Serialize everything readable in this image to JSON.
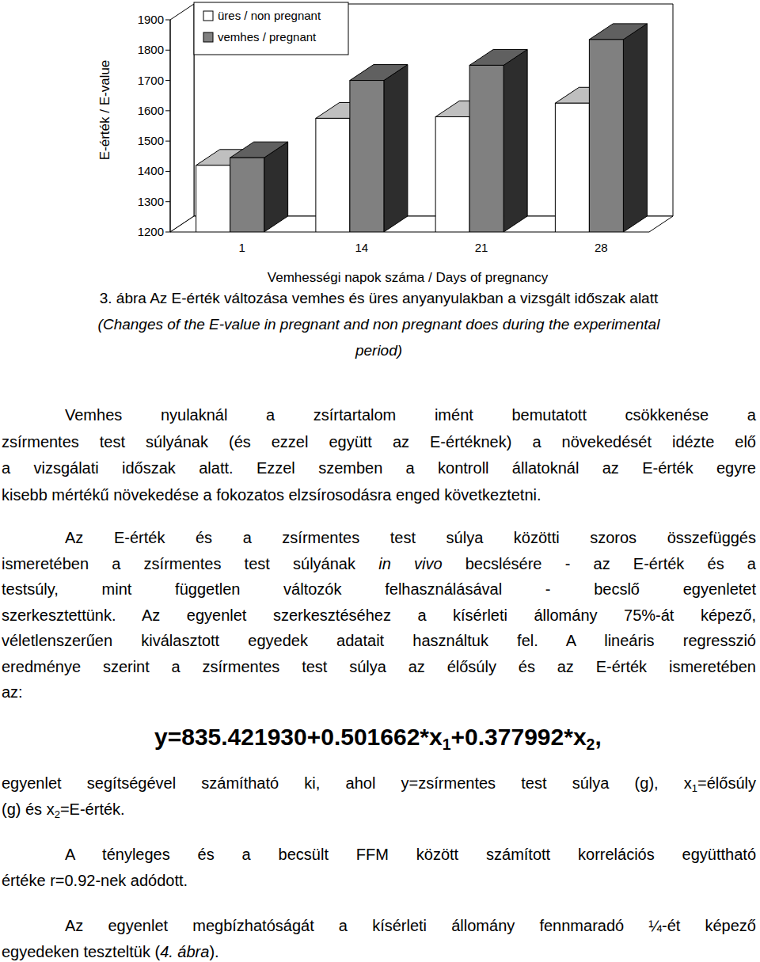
{
  "chart_data": {
    "type": "bar",
    "x_label": "Vemhességi napok száma / Days of pregnancy",
    "y_label": "E-érték / E-value",
    "categories": [
      "1",
      "14",
      "21",
      "28"
    ],
    "series": [
      {
        "name": "üres / non pregnant",
        "color": "#ffffff",
        "values": [
          1420,
          1575,
          1580,
          1625
        ]
      },
      {
        "name": "vemhes / pregnant",
        "color": "#808080",
        "values": [
          1445,
          1700,
          1750,
          1835
        ]
      }
    ],
    "ylim": [
      1200,
      1900
    ],
    "yticks": [
      1200,
      1300,
      1400,
      1500,
      1600,
      1700,
      1800,
      1900
    ],
    "legend": "top-left",
    "grid": false
  },
  "document": {
    "caption": [
      [
        "3. ábra Az E-érték változása vemhes és üres anyanyulakban a vizsgált időszak alatt"
      ],
      [
        {
          "text": "(Changes of the E-value in pregnant and non pregnant does during the experimental",
          "style": "italic"
        }
      ],
      [
        {
          "text": "period)",
          "style": "italic"
        }
      ]
    ],
    "paragraphs": [
      {
        "lines": [
          [
            "Vemhes nyulaknál a zsírtartalom imént bemutatott csökkenése a"
          ],
          [
            "zsírmentes test súlyának (és ezzel együtt az E-értéknek) a növekedését idézte elő"
          ],
          [
            "a vizsgálati időszak alatt. Ezzel szemben a kontroll állatoknál az E-érték egyre"
          ],
          [
            "kisebb mértékű növekedése a fokozatos elzsírosodásra enged következtetni."
          ]
        ]
      },
      {
        "lines": [
          [
            "Az E-érték és a zsírmentes test súlya közötti szoros összefüggés"
          ],
          [
            "ismeretében a zsírmentes test súlyának ",
            {
              "text": "in vivo",
              "style": "italic"
            },
            " becslésére - az E-érték és a"
          ],
          [
            "testsúly, mint független változók felhasználásával - becslő egyenletet"
          ],
          [
            "szerkesztettünk. Az egyenlet szerkesztéséhez a kísérleti állomány 75%-át képező,"
          ],
          [
            "véletlenszerűen kiválasztott egyedek adatait használtuk fel. A lineáris regresszió"
          ],
          [
            "eredménye szerint a zsírmentes test súlya az élősúly és az E-érték ismeretében"
          ],
          [
            "az:"
          ]
        ]
      },
      {
        "lines": [
          [
            "y=835.421930+0.501662*x",
            {
              "text": "1",
              "style": "sub"
            },
            "+0.377992*x",
            {
              "text": "2",
              "style": "sub"
            },
            ","
          ]
        ]
      },
      {
        "lines": [
          [
            "egyenlet segítségével számítható ki, ahol y=zsírmentes test súlya (g), x",
            {
              "text": "1",
              "style": "sub"
            },
            "=élősúly"
          ],
          [
            "(g) és x",
            {
              "text": "2",
              "style": "sub"
            },
            "=E-érték."
          ]
        ]
      },
      {
        "lines": [
          [
            "A tényleges és a becsült FFM között számított korrelációs együttható"
          ],
          [
            "értéke r=0.92-nek adódott."
          ]
        ]
      },
      {
        "lines": [
          [
            "Az egyenlet megbízhatóságát a kísérleti állomány fennmaradó ¼-ét képező"
          ],
          [
            "egyedeken teszteltük (",
            {
              "text": "4. ábra",
              "style": "italic"
            },
            ")."
          ]
        ]
      }
    ]
  }
}
